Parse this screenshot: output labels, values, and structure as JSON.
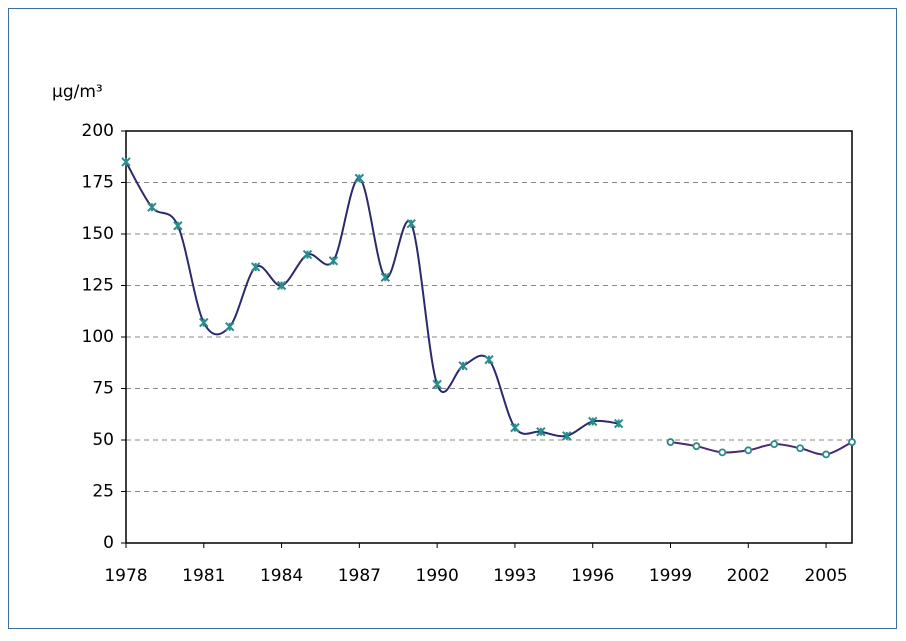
{
  "chart_data": {
    "type": "line",
    "y_label": "µg/m³",
    "xlim": [
      1978,
      2006
    ],
    "xticks": [
      1978,
      1981,
      1984,
      1987,
      1990,
      1993,
      1996,
      1999,
      2002,
      2005
    ],
    "ylim": [
      0,
      200
    ],
    "yticks": [
      0,
      25,
      50,
      75,
      100,
      125,
      150,
      175,
      200
    ],
    "grid": true,
    "series": [
      {
        "color": "#2b2a6b",
        "marker": "x",
        "marker_color": "#2a8c8c",
        "x": [
          1978,
          1979,
          1980,
          1981,
          1982,
          1983,
          1984,
          1985,
          1986,
          1987,
          1988,
          1989,
          1990,
          1991,
          1992,
          1993,
          1994,
          1995,
          1996,
          1997
        ],
        "values": [
          185,
          163,
          154,
          107,
          105,
          134,
          125,
          140,
          137,
          177,
          129,
          155,
          77,
          86,
          89,
          56,
          54,
          52,
          59,
          58
        ]
      },
      {
        "color": "#4b2a72",
        "marker": "circle",
        "marker_color": "#2a8c8c",
        "x": [
          1999,
          2000,
          2001,
          2002,
          2003,
          2004,
          2005,
          2006
        ],
        "values": [
          49,
          47,
          44,
          45,
          48,
          46,
          43,
          49
        ]
      }
    ]
  }
}
